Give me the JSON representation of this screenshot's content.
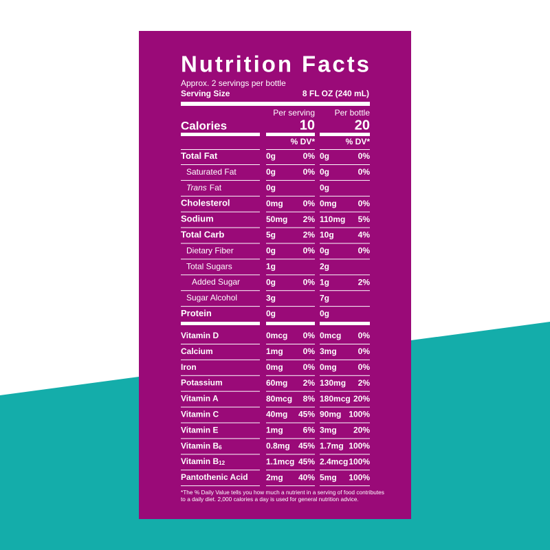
{
  "label": {
    "title": "Nutrition Facts",
    "servings": "Approx. 2 servings per bottle",
    "serving_size": {
      "label": "Serving Size",
      "value": "8 FL OZ (240 mL)"
    },
    "columns": [
      "Per serving",
      "Per bottle"
    ],
    "calories": {
      "label": "Calories",
      "values": [
        "10",
        "20"
      ]
    },
    "dv_header": [
      "% DV*",
      "% DV*"
    ],
    "nutrients": [
      {
        "label": "Total Fat",
        "style": "main",
        "serving_amount": "0g",
        "serving_dv": "0%",
        "bottle_amount": "0g",
        "bottle_dv": "0%"
      },
      {
        "label": "Saturated Fat",
        "style": "sub",
        "serving_amount": "0g",
        "serving_dv": "0%",
        "bottle_amount": "0g",
        "bottle_dv": "0%"
      },
      {
        "label_italic": "Trans",
        "label": "Fat",
        "style": "sub",
        "serving_amount": "0g",
        "bottle_amount": "0g"
      },
      {
        "label": "Cholesterol",
        "style": "main",
        "serving_amount": "0mg",
        "serving_dv": "0%",
        "bottle_amount": "0mg",
        "bottle_dv": "0%"
      },
      {
        "label": "Sodium",
        "style": "main",
        "serving_amount": "50mg",
        "serving_dv": "2%",
        "bottle_amount": "110mg",
        "bottle_dv": "5%"
      },
      {
        "label": "Total Carb",
        "style": "main",
        "serving_amount": "5g",
        "serving_dv": "2%",
        "bottle_amount": "10g",
        "bottle_dv": "4%"
      },
      {
        "label": "Dietary Fiber",
        "style": "sub",
        "serving_amount": "0g",
        "serving_dv": "0%",
        "bottle_amount": "0g",
        "bottle_dv": "0%"
      },
      {
        "label": "Total Sugars",
        "style": "sub",
        "serving_amount": "1g",
        "bottle_amount": "2g"
      },
      {
        "label": "Added Sugar",
        "style": "subsub",
        "serving_amount": "0g",
        "serving_dv": "0%",
        "bottle_amount": "1g",
        "bottle_dv": "2%"
      },
      {
        "label": "Sugar Alcohol",
        "style": "sub",
        "serving_amount": "3g",
        "bottle_amount": "7g"
      },
      {
        "label": "Protein",
        "style": "main",
        "serving_amount": "0g",
        "bottle_amount": "0g"
      }
    ],
    "vitamins": [
      {
        "label": "Vitamin D",
        "serving_amount": "0mcg",
        "serving_dv": "0%",
        "bottle_amount": "0mcg",
        "bottle_dv": "0%"
      },
      {
        "label": "Calcium",
        "serving_amount": "1mg",
        "serving_dv": "0%",
        "bottle_amount": "3mg",
        "bottle_dv": "0%"
      },
      {
        "label": "Iron",
        "serving_amount": "0mg",
        "serving_dv": "0%",
        "bottle_amount": "0mg",
        "bottle_dv": "0%"
      },
      {
        "label": "Potassium",
        "serving_amount": "60mg",
        "serving_dv": "2%",
        "bottle_amount": "130mg",
        "bottle_dv": "2%"
      },
      {
        "label": "Vitamin A",
        "serving_amount": "80mcg",
        "serving_dv": "8%",
        "bottle_amount": "180mcg",
        "bottle_dv": "20%"
      },
      {
        "label": "Vitamin C",
        "serving_amount": "40mg",
        "serving_dv": "45%",
        "bottle_amount": "90mg",
        "bottle_dv": "100%"
      },
      {
        "label": "Vitamin E",
        "serving_amount": "1mg",
        "serving_dv": "6%",
        "bottle_amount": "3mg",
        "bottle_dv": "20%"
      },
      {
        "label": "Vitamin B",
        "label_sub": "6",
        "serving_amount": "0.8mg",
        "serving_dv": "45%",
        "bottle_amount": "1.7mg",
        "bottle_dv": "100%"
      },
      {
        "label": "Vitamin B",
        "label_sub": "12",
        "serving_amount": "1.1mcg",
        "serving_dv": "45%",
        "bottle_amount": "2.4mcg",
        "bottle_dv": "100%"
      },
      {
        "label": "Pantothenic Acid",
        "serving_amount": "2mg",
        "serving_dv": "40%",
        "bottle_amount": "5mg",
        "bottle_dv": "100%"
      }
    ],
    "footnote": [
      "*The % Daily Value tells you how much a nutrient in a serving of food contributes",
      "to a daily diet. 2,000 calories a day is used for general nutrition advice."
    ]
  }
}
